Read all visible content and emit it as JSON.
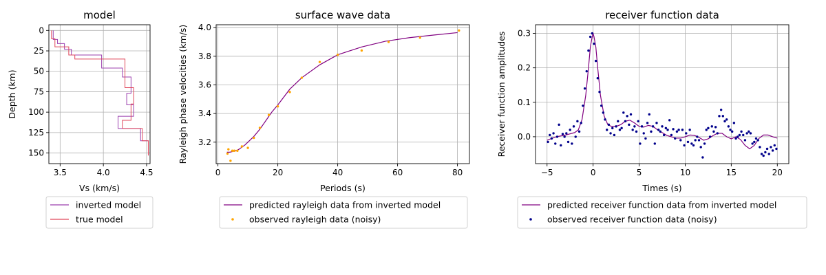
{
  "chart_data": [
    {
      "id": "model",
      "type": "line",
      "title": "model",
      "xlabel": "Vs (km/s)",
      "ylabel": "Depth (km)",
      "xlim": [
        3.37,
        4.54
      ],
      "ylim": [
        163,
        -7
      ],
      "y_inverted": true,
      "grid": true,
      "xticks": [
        3.5,
        4.0,
        4.5
      ],
      "yticks": [
        0,
        25,
        50,
        75,
        100,
        125,
        150
      ],
      "legend_placement": "below",
      "series": [
        {
          "name": "inverted model",
          "color": "#9b3fae",
          "style": "step",
          "vs": [
            3.42,
            3.47,
            3.55,
            3.63,
            3.98,
            4.22,
            4.32,
            4.27,
            4.35,
            4.17,
            4.43,
            4.52
          ],
          "depth_top": [
            0,
            11,
            16,
            23,
            30,
            46,
            57,
            77,
            91,
            105,
            120,
            135
          ],
          "depth_bottom": [
            11,
            16,
            23,
            30,
            46,
            57,
            77,
            91,
            105,
            120,
            135,
            153
          ]
        },
        {
          "name": "true model",
          "color": "#e0475b",
          "style": "step",
          "vs": [
            3.4,
            3.44,
            3.6,
            3.67,
            4.25,
            4.35,
            4.32,
            4.22,
            4.45,
            4.52
          ],
          "depth_top": [
            0,
            10,
            20,
            30,
            35,
            70,
            90,
            110,
            120,
            135
          ],
          "depth_bottom": [
            10,
            20,
            30,
            35,
            70,
            90,
            110,
            120,
            135,
            153
          ]
        }
      ]
    },
    {
      "id": "surface",
      "type": "line",
      "title": "surface wave data",
      "xlabel": "Periods (s)",
      "ylabel": "Rayleigh phase velocities (km/s)",
      "xlim": [
        -0.6,
        84
      ],
      "ylim": [
        3.05,
        4.02
      ],
      "grid": true,
      "xticks": [
        0,
        20,
        40,
        60,
        80
      ],
      "yticks": [
        3.2,
        3.4,
        3.6,
        3.8,
        4.0
      ],
      "legend_placement": "below",
      "series": [
        {
          "name": "predicted rayleigh data from inverted model",
          "color": "#800080",
          "kind": "line",
          "x": [
            3,
            4,
            5,
            6,
            7,
            8,
            9,
            10,
            12,
            14,
            16,
            18,
            20,
            24,
            28,
            34,
            40,
            48,
            56,
            64,
            72,
            80
          ],
          "y": [
            3.13,
            3.13,
            3.135,
            3.14,
            3.15,
            3.165,
            3.18,
            3.2,
            3.24,
            3.29,
            3.35,
            3.41,
            3.46,
            3.57,
            3.65,
            3.74,
            3.81,
            3.865,
            3.905,
            3.93,
            3.948,
            3.965
          ]
        },
        {
          "name": "observed rayleigh data (noisy)",
          "color": "#ffa500",
          "kind": "scatter",
          "x": [
            3.2,
            3.5,
            4.2,
            4.8,
            5.5,
            6.5,
            8,
            10,
            12,
            14,
            17,
            20,
            24,
            28,
            34,
            40,
            48,
            57,
            67.5,
            80.5
          ],
          "y": [
            3.12,
            3.15,
            3.07,
            3.14,
            3.14,
            3.14,
            3.17,
            3.16,
            3.23,
            3.3,
            3.39,
            3.45,
            3.55,
            3.65,
            3.76,
            3.81,
            3.84,
            3.9,
            3.93,
            3.98
          ]
        }
      ]
    },
    {
      "id": "rf",
      "type": "line",
      "title": "receiver function data",
      "xlabel": "Times (s)",
      "ylabel": "Receiver function amplitudes",
      "xlim": [
        -6.25,
        21.25
      ],
      "ylim": [
        -0.078,
        0.325
      ],
      "grid": true,
      "xticks": [
        -5,
        0,
        5,
        10,
        15,
        20
      ],
      "yticks": [
        0.0,
        0.1,
        0.2,
        0.3
      ],
      "legend_placement": "below",
      "series": [
        {
          "name": "predicted receiver function data from inverted model",
          "color": "#800080",
          "kind": "line",
          "x": [
            -5,
            -4,
            -3,
            -2,
            -1.6,
            -1.2,
            -0.8,
            -0.5,
            -0.3,
            -0.1,
            0,
            0.1,
            0.3,
            0.5,
            0.8,
            1.2,
            1.6,
            2,
            2.5,
            3,
            3.5,
            4,
            4.5,
            5,
            5.5,
            6,
            6.5,
            7,
            7.5,
            8,
            8.5,
            9,
            9.5,
            10,
            10.5,
            11,
            11.5,
            12,
            12.5,
            13,
            13.5,
            14,
            14.5,
            15,
            15.5,
            16,
            16.5,
            17,
            17.5,
            18,
            18.5,
            19,
            19.5,
            20
          ],
          "y": [
            -0.01,
            0.0,
            0.005,
            0.012,
            0.02,
            0.05,
            0.12,
            0.2,
            0.26,
            0.29,
            0.3,
            0.29,
            0.26,
            0.2,
            0.12,
            0.06,
            0.035,
            0.03,
            0.03,
            0.035,
            0.045,
            0.048,
            0.04,
            0.03,
            0.028,
            0.033,
            0.03,
            0.02,
            0.012,
            0.004,
            0.0,
            -0.004,
            -0.004,
            0.0,
            0.005,
            0.004,
            -0.002,
            -0.01,
            -0.006,
            0.003,
            0.01,
            0.01,
            0.0,
            -0.006,
            0.0,
            -0.008,
            -0.025,
            -0.035,
            -0.025,
            -0.005,
            0.005,
            0.005,
            0.0,
            -0.004
          ]
        },
        {
          "name": "observed receiver function data (noisy)",
          "color": "#00008b",
          "kind": "scatter",
          "x": [
            -4.9,
            -4.7,
            -4.5,
            -4.3,
            -4.1,
            -3.9,
            -3.7,
            -3.5,
            -3.3,
            -3.1,
            -2.9,
            -2.7,
            -2.5,
            -2.3,
            -2.1,
            -1.9,
            -1.7,
            -1.5,
            -1.3,
            -1.1,
            -0.9,
            -0.7,
            -0.5,
            -0.3,
            -0.1,
            0.1,
            0.3,
            0.5,
            0.7,
            0.9,
            1.1,
            1.3,
            1.5,
            1.7,
            1.9,
            2.1,
            2.3,
            2.5,
            2.7,
            2.9,
            3.1,
            3.3,
            3.5,
            3.7,
            3.9,
            4.1,
            4.3,
            4.5,
            4.7,
            4.9,
            5.1,
            5.3,
            5.5,
            5.7,
            5.9,
            6.1,
            6.3,
            6.5,
            6.7,
            6.9,
            7.1,
            7.3,
            7.5,
            7.7,
            7.9,
            8.1,
            8.3,
            8.5,
            8.7,
            8.9,
            9.1,
            9.3,
            9.5,
            9.7,
            9.9,
            10.1,
            10.3,
            10.5,
            10.7,
            10.9,
            11.1,
            11.3,
            11.5,
            11.7,
            11.9,
            12.1,
            12.3,
            12.5,
            12.7,
            12.9,
            13.1,
            13.3,
            13.5,
            13.7,
            13.9,
            14.1,
            14.3,
            14.5,
            14.7,
            14.9,
            15.1,
            15.3,
            15.5,
            15.7,
            15.9,
            16.1,
            16.3,
            16.5,
            16.7,
            16.9,
            17.1,
            17.3,
            17.5,
            17.7,
            17.9,
            18.1,
            18.3,
            18.5,
            18.7,
            18.9,
            19.1,
            19.3,
            19.5,
            19.7,
            19.9
          ],
          "y": [
            -0.015,
            0.005,
            -0.005,
            0.01,
            -0.02,
            0.0,
            0.035,
            -0.025,
            0.008,
            0.0,
            0.01,
            -0.015,
            0.02,
            -0.02,
            0.03,
            0.0,
            0.045,
            0.015,
            0.04,
            0.09,
            0.14,
            0.19,
            0.25,
            0.29,
            0.3,
            0.27,
            0.22,
            0.17,
            0.13,
            0.09,
            0.07,
            0.05,
            0.02,
            0.035,
            0.01,
            0.025,
            0.005,
            0.03,
            0.045,
            0.02,
            0.025,
            0.07,
            0.045,
            0.06,
            0.035,
            0.065,
            0.02,
            0.03,
            0.015,
            0.045,
            -0.02,
            0.03,
            0.01,
            -0.005,
            0.04,
            0.065,
            0.015,
            0.03,
            -0.02,
            0.04,
            0.02,
            0.015,
            0.03,
            0.005,
            0.025,
            0.02,
            0.048,
            0.005,
            0.022,
            -0.005,
            0.015,
            0.02,
            -0.01,
            0.02,
            -0.025,
            0.01,
            -0.015,
            0.02,
            -0.02,
            -0.025,
            -0.01,
            0.0,
            -0.01,
            -0.03,
            -0.06,
            -0.02,
            0.02,
            0.025,
            0.0,
            0.03,
            0.015,
            0.028,
            0.01,
            0.06,
            0.078,
            0.06,
            0.045,
            0.05,
            0.03,
            0.02,
            0.015,
            0.04,
            -0.005,
            0.0,
            0.005,
            0.015,
            0.005,
            -0.01,
            0.01,
            0.015,
            0.01,
            -0.02,
            -0.015,
            -0.005,
            -0.01,
            -0.03,
            -0.05,
            -0.055,
            -0.045,
            -0.035,
            -0.05,
            -0.03,
            -0.04,
            -0.025,
            -0.035
          ]
        }
      ]
    }
  ]
}
